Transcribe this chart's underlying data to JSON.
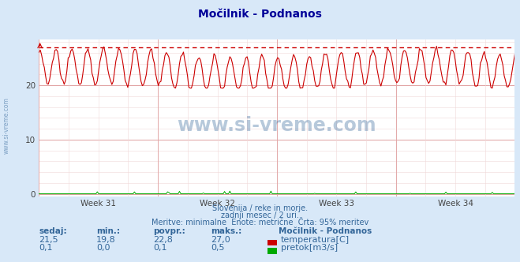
{
  "title": "Močilnik - Podnanos",
  "bg_color": "#d8e8f8",
  "plot_bg_color": "#ffffff",
  "grid_color_minor": "#f0d8d8",
  "grid_color_major": "#e0a0a0",
  "x_tick_labels": [
    "Week 31",
    "Week 32",
    "Week 33",
    "Week 34"
  ],
  "y_ticks": [
    0,
    10,
    20
  ],
  "ylim": [
    -0.5,
    28.5
  ],
  "temp_min": 19.8,
  "temp_max": 27.0,
  "temp_avg": 22.8,
  "temp_current": 21.5,
  "flow_min": 0.0,
  "flow_max": 0.5,
  "flow_avg": 0.1,
  "flow_current": 0.1,
  "temp_color": "#cc0000",
  "flow_color": "#00aa00",
  "dashed_line_color": "#cc0000",
  "dashed_line_value": 27.0,
  "subtitle1": "Slovenija / reke in morje.",
  "subtitle2": "zadnji mesec / 2 uri.",
  "subtitle3": "Meritve: minimalne  Enote: metrične  Črta: 95% meritev",
  "watermark": "www.si-vreme.com",
  "label_color": "#336699",
  "title_color": "#000099",
  "num_points": 360,
  "num_cycles": 30,
  "temp_mean": 22.8,
  "temp_amp": 3.2
}
